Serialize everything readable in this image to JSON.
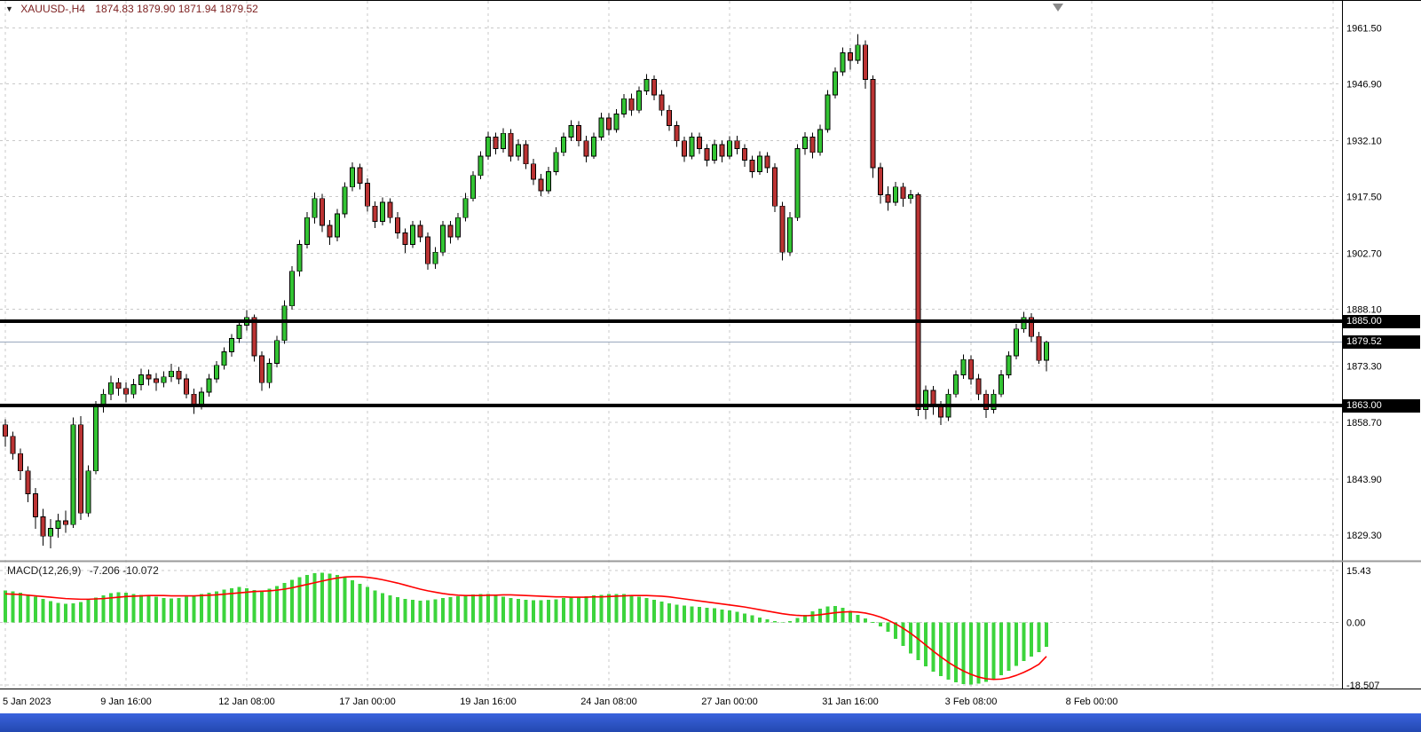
{
  "title": {
    "symbol_period": "XAUUSD-,H4",
    "ohlc": "1874.83 1879.90 1871.94 1879.52"
  },
  "icons": {
    "symbol_dropdown": "▼"
  },
  "macd_panel": {
    "label": "MACD(12,26,9)",
    "values": "-7.206 -10.072"
  },
  "colors": {
    "bull": "#33c433",
    "bear": "#bb3333",
    "outline": "#000000",
    "macd_histogram": "#3cd43c",
    "macd_signal": "#ff0000",
    "grid": "#c9c9c9",
    "level_line": "#000000",
    "current_price_line": "#9aa7bd",
    "badge_bg": "#000000",
    "badge_text": "#ffffff",
    "title_text": "#7c1f1f",
    "taskbar": "#2e55cf"
  },
  "chart_data": {
    "type": "candlestick",
    "symbol": "XAUUSD-",
    "timeframe": "H4",
    "current_price": 1879.52,
    "current_price_label": "1879.52",
    "price_range": [
      1822.8,
      1968.5
    ],
    "macd_range": [
      -19.6,
      17.8
    ],
    "price_gridlines": [
      1961.5,
      1946.9,
      1932.1,
      1917.5,
      1902.7,
      1888.1,
      1873.3,
      1858.7,
      1843.9,
      1829.3
    ],
    "macd_gridlines": [
      {
        "v": 15.43,
        "label": "15.43"
      },
      {
        "v": 0,
        "label": "0.00"
      },
      {
        "v": -18.507,
        "label": "-18.507"
      }
    ],
    "hlines": [
      {
        "price": 1885.0,
        "label": "1885.00"
      },
      {
        "price": 1863.0,
        "label": "1863.00"
      }
    ],
    "time_ticks": [
      {
        "i": 0,
        "label": "5 Jan 2023"
      },
      {
        "i": 16,
        "label": "9 Jan 16:00"
      },
      {
        "i": 32,
        "label": "12 Jan 08:00"
      },
      {
        "i": 48,
        "label": "17 Jan 00:00"
      },
      {
        "i": 64,
        "label": "19 Jan 16:00"
      },
      {
        "i": 80,
        "label": "24 Jan 08:00"
      },
      {
        "i": 96,
        "label": "27 Jan 00:00"
      },
      {
        "i": 112,
        "label": "31 Jan 16:00"
      },
      {
        "i": 128,
        "label": "3 Feb 08:00"
      },
      {
        "i": 144,
        "label": "8 Feb 00:00"
      }
    ],
    "extra_grid_i": [
      160,
      176
    ],
    "ohlc": [
      [
        1858.0,
        1859.5,
        1852.3,
        1855.0
      ],
      [
        1855.0,
        1856.2,
        1848.9,
        1850.5
      ],
      [
        1850.5,
        1851.8,
        1843.6,
        1846.0
      ],
      [
        1846.0,
        1847.2,
        1837.8,
        1840.0
      ],
      [
        1840.0,
        1841.5,
        1830.9,
        1834.0
      ],
      [
        1834.0,
        1836.1,
        1826.5,
        1829.0
      ],
      [
        1829.0,
        1833.4,
        1825.8,
        1831.0
      ],
      [
        1831.0,
        1834.8,
        1828.6,
        1833.0
      ],
      [
        1833.0,
        1835.6,
        1829.8,
        1832.0
      ],
      [
        1832.0,
        1859.9,
        1831.1,
        1858.0
      ],
      [
        1858.0,
        1860.3,
        1833.2,
        1835.0
      ],
      [
        1835.0,
        1847.4,
        1834.0,
        1846.0
      ],
      [
        1846.0,
        1864.2,
        1845.1,
        1863.0
      ],
      [
        1863.0,
        1867.3,
        1861.2,
        1866.0
      ],
      [
        1866.0,
        1870.8,
        1864.4,
        1869.0
      ],
      [
        1869.0,
        1870.2,
        1865.6,
        1867.5
      ],
      [
        1867.5,
        1869.1,
        1863.8,
        1866.0
      ],
      [
        1866.0,
        1870.0,
        1864.9,
        1868.5
      ],
      [
        1868.5,
        1872.6,
        1867.0,
        1871.0
      ],
      [
        1871.0,
        1872.4,
        1868.3,
        1870.0
      ],
      [
        1870.0,
        1871.5,
        1866.9,
        1869.0
      ],
      [
        1869.0,
        1872.0,
        1867.8,
        1870.5
      ],
      [
        1870.5,
        1873.9,
        1869.2,
        1872.0
      ],
      [
        1872.0,
        1873.1,
        1868.6,
        1870.0
      ],
      [
        1870.0,
        1871.3,
        1864.9,
        1866.0
      ],
      [
        1866.0,
        1867.4,
        1860.8,
        1863.0
      ],
      [
        1863.0,
        1867.8,
        1862.0,
        1866.5
      ],
      [
        1866.5,
        1871.2,
        1865.3,
        1870.0
      ],
      [
        1870.0,
        1874.6,
        1868.9,
        1873.5
      ],
      [
        1873.5,
        1878.2,
        1872.4,
        1877.0
      ],
      [
        1877.0,
        1881.7,
        1875.8,
        1880.5
      ],
      [
        1880.5,
        1885.3,
        1879.3,
        1884.0
      ],
      [
        1884.0,
        1887.9,
        1882.6,
        1886.0
      ],
      [
        1886.0,
        1886.8,
        1874.5,
        1876.0
      ],
      [
        1876.0,
        1877.2,
        1866.8,
        1869.0
      ],
      [
        1869.0,
        1875.3,
        1867.6,
        1874.0
      ],
      [
        1874.0,
        1881.2,
        1873.0,
        1880.0
      ],
      [
        1880.0,
        1890.4,
        1879.1,
        1889.0
      ],
      [
        1889.0,
        1899.3,
        1888.0,
        1898.0
      ],
      [
        1898.0,
        1906.2,
        1896.7,
        1905.0
      ],
      [
        1905.0,
        1913.4,
        1904.0,
        1912.0
      ],
      [
        1912.0,
        1918.6,
        1910.5,
        1917.0
      ],
      [
        1917.0,
        1918.2,
        1908.3,
        1910.0
      ],
      [
        1910.0,
        1911.4,
        1904.9,
        1907.0
      ],
      [
        1907.0,
        1914.3,
        1905.8,
        1913.0
      ],
      [
        1913.0,
        1921.2,
        1912.0,
        1920.0
      ],
      [
        1920.0,
        1926.4,
        1918.9,
        1925.0
      ],
      [
        1925.0,
        1926.1,
        1919.4,
        1921.0
      ],
      [
        1921.0,
        1922.3,
        1913.6,
        1915.0
      ],
      [
        1915.0,
        1916.2,
        1909.3,
        1911.0
      ],
      [
        1911.0,
        1917.3,
        1910.0,
        1916.0
      ],
      [
        1916.0,
        1917.1,
        1910.6,
        1912.0
      ],
      [
        1912.0,
        1913.4,
        1906.5,
        1908.0
      ],
      [
        1908.0,
        1909.2,
        1902.8,
        1905.0
      ],
      [
        1905.0,
        1911.2,
        1904.1,
        1910.0
      ],
      [
        1910.0,
        1911.3,
        1905.6,
        1907.0
      ],
      [
        1907.0,
        1908.1,
        1898.4,
        1900.0
      ],
      [
        1900.0,
        1904.3,
        1898.7,
        1903.0
      ],
      [
        1903.0,
        1911.2,
        1902.0,
        1910.0
      ],
      [
        1910.0,
        1911.1,
        1905.3,
        1907.0
      ],
      [
        1907.0,
        1913.2,
        1906.2,
        1912.0
      ],
      [
        1912.0,
        1918.4,
        1911.0,
        1917.0
      ],
      [
        1917.0,
        1924.1,
        1916.2,
        1923.0
      ],
      [
        1923.0,
        1929.3,
        1922.0,
        1928.0
      ],
      [
        1928.0,
        1934.4,
        1927.1,
        1933.0
      ],
      [
        1933.0,
        1934.2,
        1928.5,
        1930.0
      ],
      [
        1930.0,
        1935.3,
        1929.0,
        1934.0
      ],
      [
        1934.0,
        1935.1,
        1926.6,
        1928.0
      ],
      [
        1928.0,
        1932.4,
        1926.9,
        1931.0
      ],
      [
        1931.0,
        1932.2,
        1924.7,
        1926.0
      ],
      [
        1926.0,
        1927.3,
        1920.5,
        1922.0
      ],
      [
        1922.0,
        1923.4,
        1917.6,
        1919.0
      ],
      [
        1919.0,
        1925.2,
        1918.2,
        1924.0
      ],
      [
        1924.0,
        1930.3,
        1923.1,
        1929.0
      ],
      [
        1929.0,
        1934.2,
        1928.0,
        1933.0
      ],
      [
        1933.0,
        1937.4,
        1932.0,
        1936.0
      ],
      [
        1936.0,
        1937.2,
        1930.6,
        1932.0
      ],
      [
        1932.0,
        1933.3,
        1926.4,
        1928.0
      ],
      [
        1928.0,
        1934.2,
        1927.3,
        1933.0
      ],
      [
        1933.0,
        1939.4,
        1932.1,
        1938.0
      ],
      [
        1938.0,
        1939.2,
        1933.5,
        1935.0
      ],
      [
        1935.0,
        1940.3,
        1934.2,
        1939.0
      ],
      [
        1939.0,
        1944.2,
        1938.1,
        1943.0
      ],
      [
        1943.0,
        1944.3,
        1938.6,
        1940.0
      ],
      [
        1940.0,
        1946.2,
        1939.2,
        1945.0
      ],
      [
        1945.0,
        1949.4,
        1944.0,
        1948.0
      ],
      [
        1948.0,
        1949.1,
        1942.6,
        1944.0
      ],
      [
        1944.0,
        1945.2,
        1938.5,
        1940.0
      ],
      [
        1940.0,
        1941.3,
        1934.6,
        1936.0
      ],
      [
        1936.0,
        1937.2,
        1930.4,
        1932.0
      ],
      [
        1932.0,
        1933.1,
        1926.5,
        1928.0
      ],
      [
        1928.0,
        1934.2,
        1927.2,
        1933.0
      ],
      [
        1933.0,
        1934.1,
        1928.6,
        1930.0
      ],
      [
        1930.0,
        1931.2,
        1925.4,
        1927.0
      ],
      [
        1927.0,
        1932.3,
        1926.1,
        1931.0
      ],
      [
        1931.0,
        1932.1,
        1926.4,
        1928.0
      ],
      [
        1928.0,
        1933.2,
        1927.2,
        1932.0
      ],
      [
        1932.0,
        1933.4,
        1928.5,
        1930.0
      ],
      [
        1930.0,
        1931.1,
        1925.3,
        1927.0
      ],
      [
        1927.0,
        1928.2,
        1922.4,
        1924.0
      ],
      [
        1924.0,
        1929.3,
        1923.2,
        1928.0
      ],
      [
        1928.0,
        1929.1,
        1923.6,
        1925.0
      ],
      [
        1925.0,
        1926.2,
        1913.4,
        1915.0
      ],
      [
        1915.0,
        1916.1,
        1900.8,
        1903.0
      ],
      [
        1903.0,
        1913.4,
        1902.0,
        1912.0
      ],
      [
        1912.0,
        1931.2,
        1911.1,
        1930.0
      ],
      [
        1930.0,
        1934.3,
        1928.4,
        1933.0
      ],
      [
        1933.0,
        1934.1,
        1927.5,
        1929.0
      ],
      [
        1929.0,
        1936.2,
        1928.1,
        1935.0
      ],
      [
        1935.0,
        1945.3,
        1934.2,
        1944.0
      ],
      [
        1944.0,
        1951.2,
        1943.1,
        1950.0
      ],
      [
        1950.0,
        1956.4,
        1949.0,
        1955.0
      ],
      [
        1955.0,
        1956.2,
        1950.6,
        1953.0
      ],
      [
        1953.0,
        1959.8,
        1952.1,
        1957.0
      ],
      [
        1957.0,
        1958.2,
        1945.6,
        1948.0
      ],
      [
        1948.0,
        1949.1,
        1922.4,
        1925.0
      ],
      [
        1925.0,
        1926.3,
        1915.6,
        1918.0
      ],
      [
        1918.0,
        1920.2,
        1913.8,
        1916.0
      ],
      [
        1916.0,
        1921.3,
        1915.1,
        1920.0
      ],
      [
        1920.0,
        1921.1,
        1914.9,
        1917.0
      ],
      [
        1917.0,
        1919.2,
        1915.6,
        1918.0
      ],
      [
        1918.0,
        1918.5,
        1860.3,
        1862.0
      ],
      [
        1862.0,
        1868.2,
        1859.4,
        1867.0
      ],
      [
        1867.0,
        1868.1,
        1860.6,
        1863.0
      ],
      [
        1863.0,
        1864.2,
        1857.9,
        1860.0
      ],
      [
        1860.0,
        1867.3,
        1859.0,
        1866.0
      ],
      [
        1866.0,
        1872.2,
        1865.1,
        1871.0
      ],
      [
        1871.0,
        1876.3,
        1870.0,
        1875.0
      ],
      [
        1875.0,
        1876.1,
        1868.5,
        1870.0
      ],
      [
        1870.0,
        1871.2,
        1864.4,
        1866.0
      ],
      [
        1866.0,
        1867.1,
        1859.8,
        1862.0
      ],
      [
        1862.0,
        1867.2,
        1861.0,
        1866.0
      ],
      [
        1866.0,
        1872.3,
        1865.2,
        1871.0
      ],
      [
        1871.0,
        1877.2,
        1870.1,
        1876.0
      ],
      [
        1876.0,
        1884.3,
        1875.1,
        1883.0
      ],
      [
        1883.0,
        1887.4,
        1882.0,
        1886.0
      ],
      [
        1886.0,
        1887.1,
        1879.6,
        1881.0
      ],
      [
        1881.0,
        1882.2,
        1873.9,
        1874.8
      ],
      [
        1874.83,
        1879.9,
        1871.94,
        1879.52
      ]
    ],
    "macd": {
      "histogram": [
        9.5,
        9.2,
        8.8,
        8.3,
        7.7,
        7.0,
        6.3,
        5.8,
        5.5,
        5.7,
        6.1,
        6.7,
        7.4,
        8.1,
        8.7,
        9.0,
        8.8,
        8.5,
        8.2,
        7.9,
        7.6,
        7.3,
        7.1,
        7.3,
        7.6,
        8.0,
        8.4,
        8.8,
        9.3,
        9.8,
        10.2,
        10.6,
        10.1,
        9.6,
        9.5,
        10.0,
        10.8,
        11.7,
        12.6,
        13.4,
        14.1,
        14.6,
        14.8,
        14.5,
        14.1,
        13.4,
        12.5,
        11.5,
        10.5,
        9.5,
        8.7,
        8.0,
        7.5,
        7.0,
        6.7,
        6.5,
        6.6,
        6.9,
        7.2,
        7.5,
        7.8,
        8.1,
        8.3,
        8.5,
        8.4,
        8.1,
        7.7,
        7.3,
        7.0,
        6.8,
        6.6,
        6.6,
        6.7,
        6.9,
        7.2,
        7.4,
        7.6,
        7.8,
        8.0,
        8.2,
        8.4,
        8.5,
        8.4,
        8.1,
        7.7,
        7.2,
        6.7,
        6.2,
        5.7,
        5.3,
        5.0,
        4.8,
        4.6,
        4.4,
        4.2,
        3.9,
        3.6,
        3.2,
        2.7,
        2.1,
        1.5,
        0.9,
        0.4,
        -0.1,
        0.4,
        1.3,
        2.3,
        3.3,
        4.1,
        4.7,
        4.9,
        4.4,
        3.4,
        2.3,
        1.2,
        0.1,
        -1.2,
        -2.8,
        -4.8,
        -7.0,
        -9.2,
        -11.2,
        -13.0,
        -14.6,
        -15.9,
        -17.0,
        -17.8,
        -18.3,
        -18.45,
        -18.2,
        -17.6,
        -16.7,
        -15.6,
        -14.3,
        -12.9,
        -11.5,
        -10.1,
        -8.8,
        -7.206
      ],
      "signal": [
        8.5,
        8.4,
        8.3,
        8.1,
        7.9,
        7.7,
        7.5,
        7.3,
        7.1,
        7.0,
        6.9,
        6.9,
        7.0,
        7.1,
        7.3,
        7.5,
        7.7,
        7.8,
        7.9,
        8.0,
        8.0,
        8.0,
        7.9,
        7.9,
        7.9,
        7.9,
        8.0,
        8.1,
        8.2,
        8.4,
        8.6,
        8.8,
        9.0,
        9.2,
        9.3,
        9.4,
        9.6,
        9.9,
        10.3,
        10.8,
        11.3,
        11.8,
        12.3,
        12.8,
        13.2,
        13.5,
        13.6,
        13.6,
        13.4,
        13.1,
        12.7,
        12.2,
        11.7,
        11.1,
        10.5,
        9.9,
        9.4,
        9.0,
        8.6,
        8.3,
        8.1,
        8.0,
        8.0,
        8.0,
        8.1,
        8.1,
        8.2,
        8.2,
        8.1,
        8.0,
        7.9,
        7.8,
        7.7,
        7.6,
        7.6,
        7.5,
        7.5,
        7.5,
        7.6,
        7.6,
        7.7,
        7.8,
        7.9,
        8.0,
        8.0,
        8.0,
        7.9,
        7.8,
        7.6,
        7.3,
        7.0,
        6.7,
        6.4,
        6.1,
        5.8,
        5.5,
        5.2,
        4.9,
        4.6,
        4.2,
        3.8,
        3.4,
        3.0,
        2.6,
        2.3,
        2.1,
        2.0,
        2.1,
        2.3,
        2.6,
        2.9,
        3.1,
        3.2,
        3.1,
        2.8,
        2.3,
        1.6,
        0.7,
        -0.4,
        -1.7,
        -3.2,
        -4.9,
        -6.7,
        -8.5,
        -10.2,
        -11.8,
        -13.2,
        -14.4,
        -15.4,
        -16.2,
        -16.7,
        -16.9,
        -16.8,
        -16.4,
        -15.7,
        -14.8,
        -13.7,
        -12.4,
        -10.072
      ]
    }
  }
}
